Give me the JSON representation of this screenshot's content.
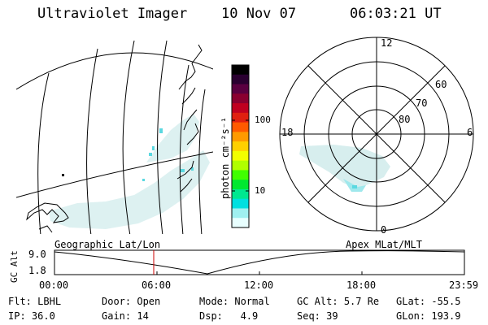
{
  "header": {
    "instrument": "Ultraviolet Imager",
    "date": "10 Nov 07",
    "time": "06:03:21 UT"
  },
  "colorbar": {
    "unit_label": "photon cm⁻²s⁻¹",
    "ticks": [
      {
        "label": "100",
        "value": 100
      },
      {
        "label": "10",
        "value": 10
      }
    ],
    "colors": [
      "#000000",
      "#2a0030",
      "#5a0040",
      "#8a0030",
      "#c00020",
      "#e02010",
      "#ff5a00",
      "#ff9a00",
      "#ffd000",
      "#f2ff00",
      "#b0ff00",
      "#40ff00",
      "#00e830",
      "#00e890",
      "#00e0e0",
      "#9ff0f0",
      "#e8ffff"
    ]
  },
  "polar": {
    "mlt_labels": [
      {
        "label": "12",
        "mlt": 12
      },
      {
        "label": "18",
        "mlt": 18
      },
      {
        "label": "6",
        "mlt": 6
      },
      {
        "label": "0",
        "mlt": 0
      }
    ],
    "lat_labels": [
      {
        "label": "60",
        "lat": 60
      },
      {
        "label": "70",
        "lat": 70
      },
      {
        "label": "80",
        "lat": 80
      }
    ]
  },
  "map": {
    "title": "Geographic Lat/Lon"
  },
  "plot": {
    "title_right": "Apex MLat/MLT",
    "ylabel": "GC Alt",
    "yticks": [
      "9.0",
      "1.8"
    ],
    "xticks": [
      "00:00",
      "06:00",
      "12:00",
      "18:00",
      "23:59"
    ],
    "marker_time": "06:03:21",
    "marker_color": "#cc0000"
  },
  "info": {
    "row1": [
      {
        "label": "Flt:",
        "value": "LBHL"
      },
      {
        "label": "Door:",
        "value": "Open"
      },
      {
        "label": "Mode:",
        "value": "Normal"
      },
      {
        "label": "GC Alt:",
        "value": "5.7 Re"
      },
      {
        "label": "GLat:",
        "value": "-55.5"
      }
    ],
    "row2": [
      {
        "label": "IP:",
        "value": "36.0"
      },
      {
        "label": "Gain:",
        "value": "14"
      },
      {
        "label": "Dsp:",
        "value": "   4.9"
      },
      {
        "label": "Seq:",
        "value": "39"
      },
      {
        "label": "GLon:",
        "value": "193.9"
      }
    ]
  }
}
